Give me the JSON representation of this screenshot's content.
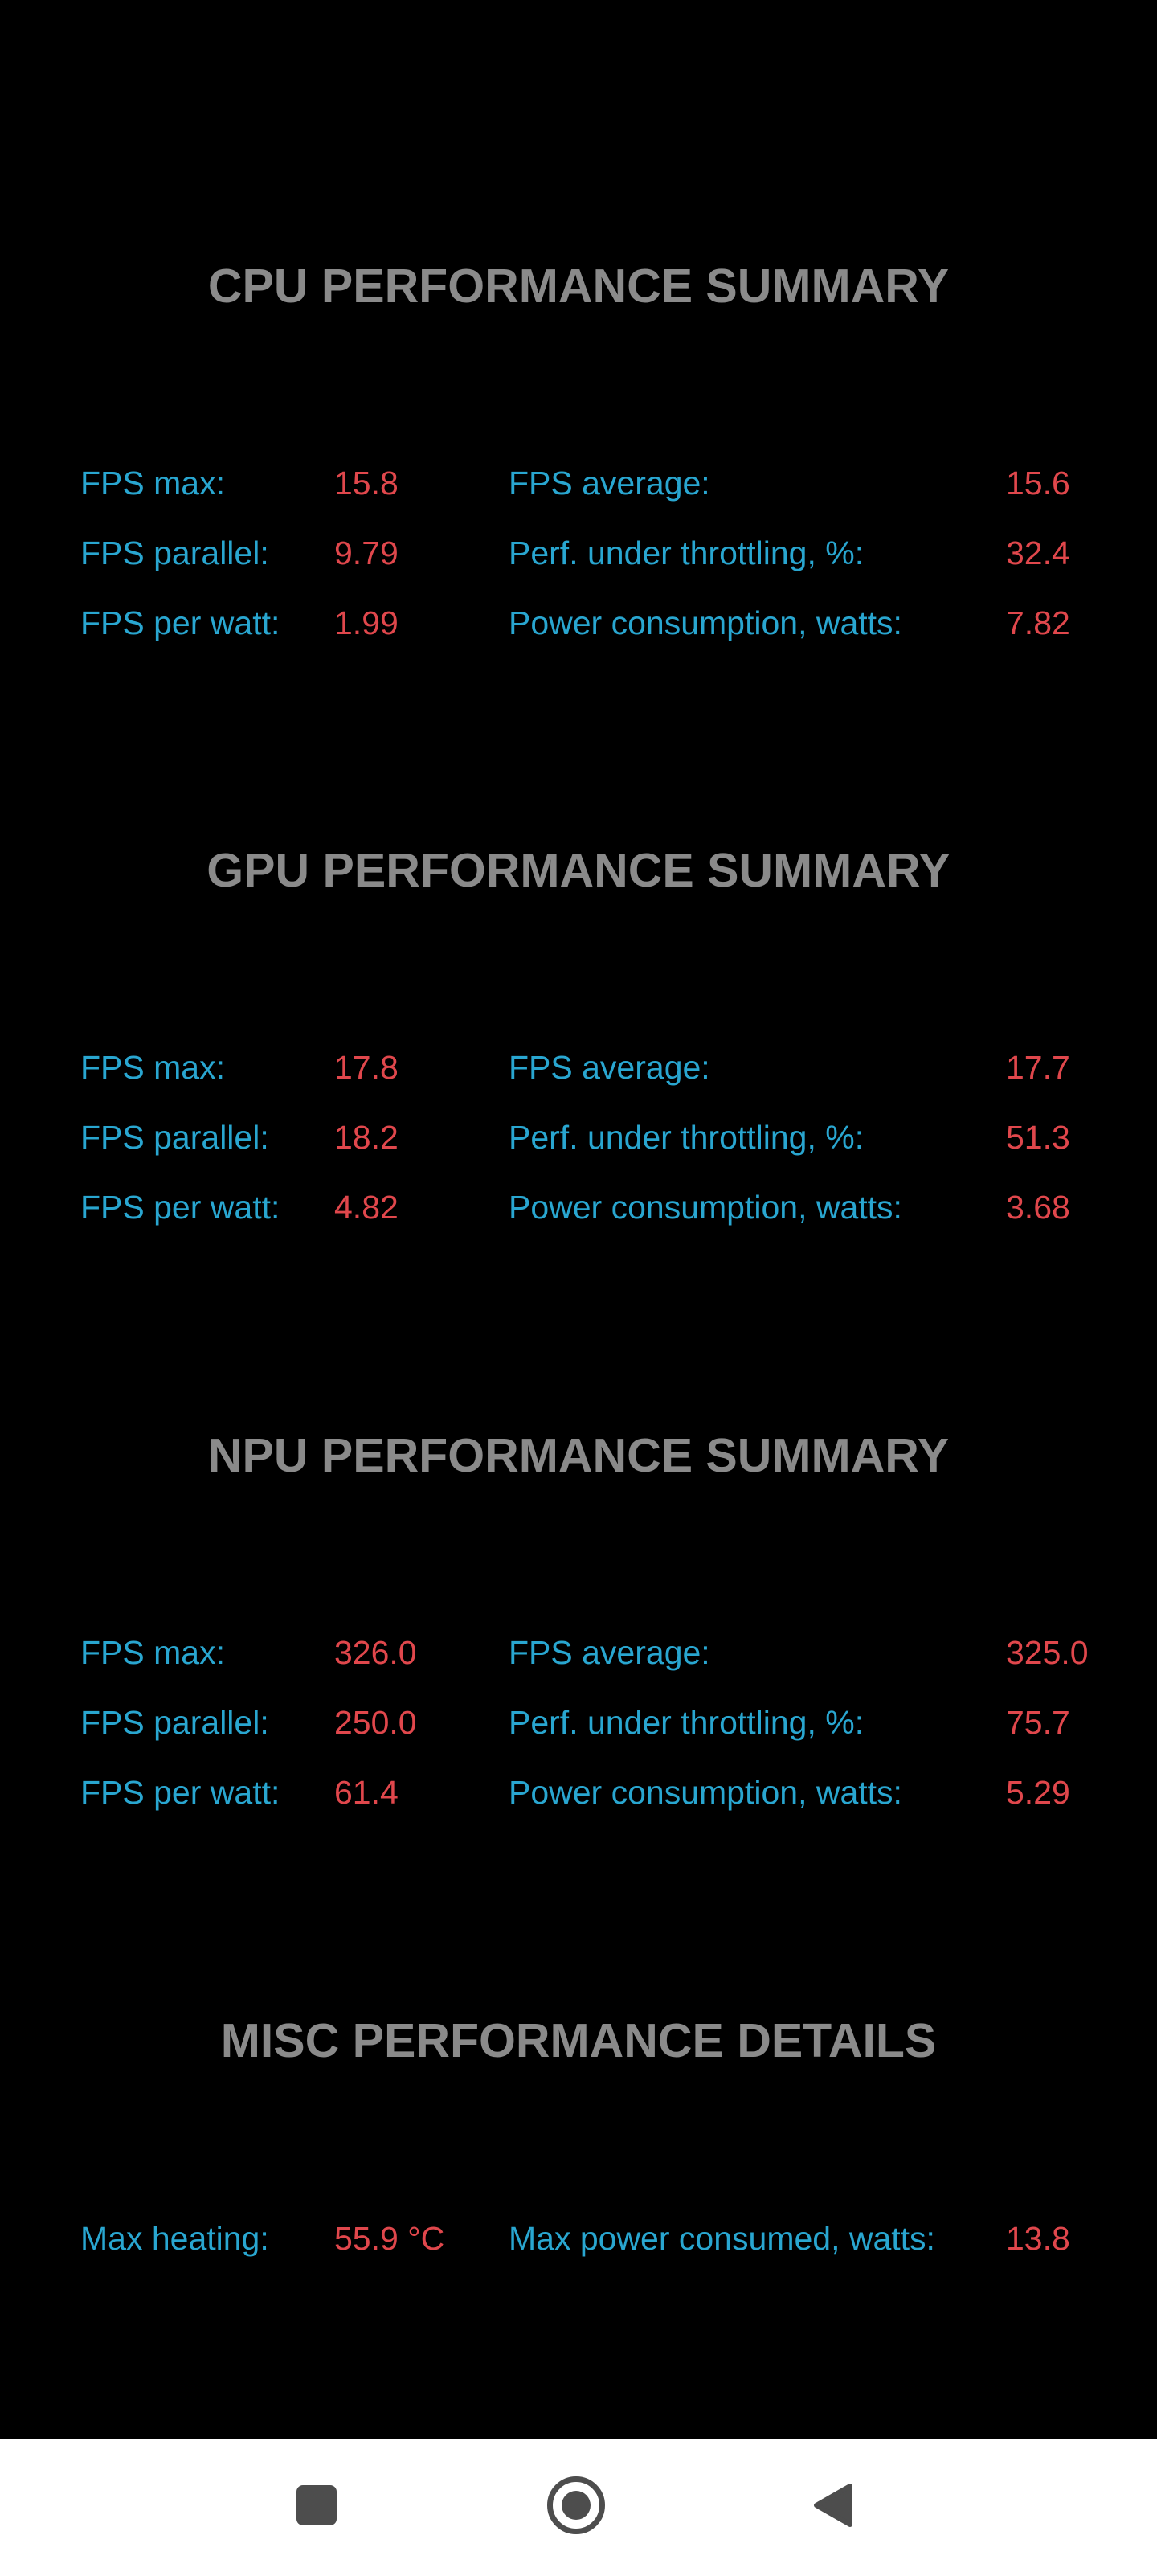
{
  "sections": {
    "cpu": {
      "title": "CPU PERFORMANCE SUMMARY",
      "fps_max": {
        "label": "FPS max:",
        "value": "15.8"
      },
      "fps_average": {
        "label": "FPS average:",
        "value": "15.6"
      },
      "fps_parallel": {
        "label": "FPS parallel:",
        "value": "9.79"
      },
      "perf_throttling": {
        "label": "Perf. under throttling, %:",
        "value": "32.4"
      },
      "fps_per_watt": {
        "label": "FPS per watt:",
        "value": "1.99"
      },
      "power_consumption": {
        "label": "Power consumption, watts:",
        "value": "7.82"
      }
    },
    "gpu": {
      "title": "GPU PERFORMANCE SUMMARY",
      "fps_max": {
        "label": "FPS max:",
        "value": "17.8"
      },
      "fps_average": {
        "label": "FPS average:",
        "value": "17.7"
      },
      "fps_parallel": {
        "label": "FPS parallel:",
        "value": "18.2"
      },
      "perf_throttling": {
        "label": "Perf. under throttling, %:",
        "value": "51.3"
      },
      "fps_per_watt": {
        "label": "FPS per watt:",
        "value": "4.82"
      },
      "power_consumption": {
        "label": "Power consumption, watts:",
        "value": "3.68"
      }
    },
    "npu": {
      "title": "NPU PERFORMANCE SUMMARY",
      "fps_max": {
        "label": "FPS max:",
        "value": "326.0"
      },
      "fps_average": {
        "label": "FPS average:",
        "value": "325.0"
      },
      "fps_parallel": {
        "label": "FPS parallel:",
        "value": "250.0"
      },
      "perf_throttling": {
        "label": "Perf. under throttling, %:",
        "value": "75.7"
      },
      "fps_per_watt": {
        "label": "FPS per watt:",
        "value": "61.4"
      },
      "power_consumption": {
        "label": "Power consumption, watts:",
        "value": "5.29"
      }
    },
    "misc": {
      "title": "MISC PERFORMANCE DETAILS",
      "max_heating": {
        "label": "Max heating:",
        "value": "55.9 °C"
      },
      "max_power": {
        "label": "Max power consumed, watts:",
        "value": "13.8"
      }
    }
  },
  "navbar": {
    "recents_icon": "square-icon",
    "home_icon": "circle-icon",
    "back_icon": "triangle-left-icon"
  },
  "colors": {
    "background": "#000000",
    "title": "#8a8a8a",
    "label": "#29a6d0",
    "value": "#e0474c",
    "navbar": "#ffffff",
    "nav_icon": "#4d4d4d"
  }
}
